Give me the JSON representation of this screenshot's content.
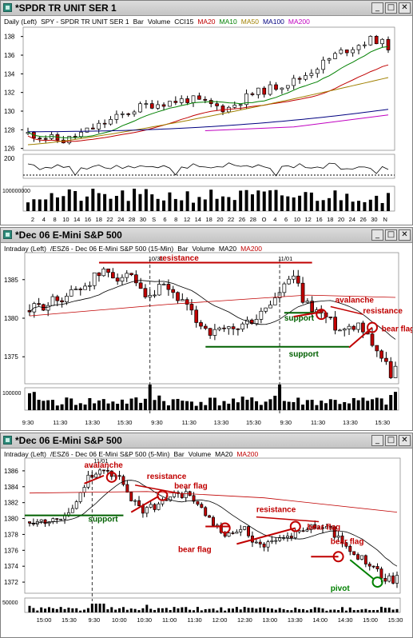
{
  "windows": [
    {
      "title": "*SPDR TR UNIT SER 1",
      "legend": [
        {
          "text": "Daily  (Left)",
          "color": "#000000"
        },
        {
          "text": "SPY - SPDR TR UNIT SER 1",
          "color": "#000000"
        },
        {
          "text": "Bar",
          "color": "#000000"
        },
        {
          "text": "Volume",
          "color": "#000000"
        },
        {
          "text": "CCI15",
          "color": "#000000"
        },
        {
          "text": "MA20",
          "color": "#c00000"
        },
        {
          "text": "MA10",
          "color": "#008000"
        },
        {
          "text": "MA50",
          "color": "#a08000"
        },
        {
          "text": "MA100",
          "color": "#000080"
        },
        {
          "text": "MA200",
          "color": "#c000c0"
        }
      ],
      "price_axis": [
        "138",
        "136",
        "134",
        "132",
        "130",
        "128",
        "126"
      ],
      "cci_axis": [
        "200"
      ],
      "volume_axis": [
        "100000000"
      ],
      "x_axis": [
        "2",
        "4",
        "8",
        "10",
        "14",
        "16",
        "18",
        "22",
        "24",
        "28",
        "30",
        "S",
        "6",
        "8",
        "12",
        "14",
        "18",
        "20",
        "22",
        "26",
        "28",
        "O",
        "4",
        "6",
        "10",
        "12",
        "16",
        "18",
        "20",
        "24",
        "26",
        "30",
        "N"
      ]
    },
    {
      "title": "*Dec 06  E-Mini S&P 500",
      "legend": [
        {
          "text": "Intraday  (Left)",
          "color": "#000000"
        },
        {
          "text": "/ESZ6 - Dec 06  E-Mini S&P 500  (15-Min)",
          "color": "#000000"
        },
        {
          "text": "Bar",
          "color": "#000000"
        },
        {
          "text": "Volume",
          "color": "#000000"
        },
        {
          "text": "MA20",
          "color": "#000000"
        },
        {
          "text": "MA200",
          "color": "#c00000"
        }
      ],
      "price_axis": [
        "1385",
        "1380",
        "1375"
      ],
      "volume_axis": [
        "100000"
      ],
      "x_axis": [
        "9:30",
        "11:30",
        "13:30",
        "15:30",
        "9:30",
        "11:30",
        "13:30",
        "15:30",
        "9:30",
        "11:30",
        "13:30",
        "15:30"
      ],
      "date_marks": [
        "10/31",
        "11/01"
      ],
      "annotations": [
        {
          "text": "resistance",
          "color": "#c00000"
        },
        {
          "text": "avalanche",
          "color": "#c00000"
        },
        {
          "text": "resistance",
          "color": "#c00000"
        },
        {
          "text": "bear flag",
          "color": "#c00000"
        },
        {
          "text": "support",
          "color": "#006000"
        },
        {
          "text": "support",
          "color": "#006000"
        }
      ]
    },
    {
      "title": "*Dec 06  E-Mini S&P 500",
      "legend": [
        {
          "text": "Intraday  (Left)",
          "color": "#000000"
        },
        {
          "text": "/ESZ6 - Dec 06  E-Mini S&P 500  (5-Min)",
          "color": "#000000"
        },
        {
          "text": "Bar",
          "color": "#000000"
        },
        {
          "text": "Volume",
          "color": "#000000"
        },
        {
          "text": "MA20",
          "color": "#000000"
        },
        {
          "text": "MA200",
          "color": "#c00000"
        }
      ],
      "price_axis": [
        "1386",
        "1384",
        "1382",
        "1380",
        "1378",
        "1376",
        "1374",
        "1372"
      ],
      "volume_axis": [
        "50000"
      ],
      "x_axis": [
        "15:00",
        "15:30",
        "9:30",
        "10:00",
        "10:30",
        "11:00",
        "11:30",
        "12:00",
        "12:30",
        "13:00",
        "13:30",
        "14:00",
        "14:30",
        "15:00",
        "15:30"
      ],
      "date_marks": [
        "11/01"
      ],
      "annotations": [
        {
          "text": "avalanche",
          "color": "#c00000"
        },
        {
          "text": "resistance",
          "color": "#c00000"
        },
        {
          "text": "bear flag",
          "color": "#c00000"
        },
        {
          "text": "support",
          "color": "#006000"
        },
        {
          "text": "resistance",
          "color": "#c00000"
        },
        {
          "text": "bear flag",
          "color": "#c00000"
        },
        {
          "text": "bear flag",
          "color": "#c00000"
        },
        {
          "text": "bear flag",
          "color": "#c00000"
        },
        {
          "text": "pivot",
          "color": "#008000"
        }
      ]
    }
  ],
  "colors": {
    "up": "#ffffff",
    "down": "#c00000",
    "ink": "#000000",
    "annot_red": "#c00000",
    "annot_green": "#006000",
    "pivot": "#008000"
  }
}
